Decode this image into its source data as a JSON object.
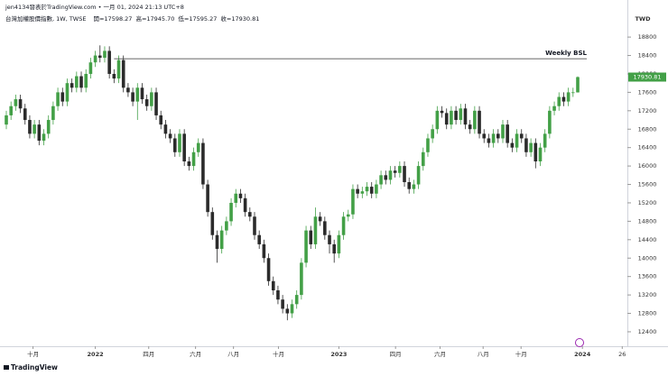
{
  "header": {
    "author_line": "jen4134發表於TradingView.com • 一月 01, 2024 21:13 UTC+8",
    "symbol": "台灣加權股價指數, 1W, TWSE",
    "ohlc": [
      {
        "label": "開=",
        "value": "17598.27"
      },
      {
        "label": "高=",
        "value": "17945.70"
      },
      {
        "label": "低=",
        "value": "17595.27"
      },
      {
        "label": "收=",
        "value": "17930.81"
      }
    ]
  },
  "footer": {
    "brand": "TradingView"
  },
  "chart_data": {
    "type": "candlestick",
    "currency": "TWD",
    "up_color": "#43a047",
    "down_color": "#2b2b2b",
    "ylim": [
      12086,
      19605
    ],
    "yticks": [
      12400,
      12800,
      13200,
      13600,
      14000,
      14400,
      14800,
      15200,
      15600,
      16000,
      16400,
      16800,
      17200,
      17600,
      18000,
      18400,
      18800
    ],
    "xlim": [
      -1.35,
      132.6
    ],
    "xticks": [
      {
        "value": 5.7,
        "label": "十月"
      },
      {
        "value": 19,
        "label": "2022"
      },
      {
        "value": 30.4,
        "label": "四月"
      },
      {
        "value": 40.4,
        "label": "六月"
      },
      {
        "value": 48.5,
        "label": "八月"
      },
      {
        "value": 58.1,
        "label": "十月"
      },
      {
        "value": 71,
        "label": "2023"
      },
      {
        "value": 83.1,
        "label": "四月"
      },
      {
        "value": 92.6,
        "label": "六月"
      },
      {
        "value": 101.8,
        "label": "八月"
      },
      {
        "value": 109.9,
        "label": "十月"
      },
      {
        "value": 123,
        "label": "2024"
      },
      {
        "value": 131.5,
        "label": "26"
      }
    ],
    "annotations": [
      {
        "text": "Weekly BSL",
        "value": 18330,
        "from": 23
      }
    ],
    "open": [
      16900,
      17100,
      17300,
      17450,
      17250,
      17000,
      16700,
      16900,
      16550,
      16700,
      17000,
      17300,
      17600,
      17400,
      17800,
      17700,
      17950,
      17700,
      18000,
      18250,
      18400,
      18350,
      18500,
      18000,
      17900,
      18300,
      17700,
      17600,
      17400,
      17700,
      17450,
      17300,
      17600,
      17100,
      16900,
      16700,
      16600,
      16300,
      16700,
      16100,
      16000,
      16300,
      16500,
      15600,
      15000,
      14500,
      14200,
      14600,
      14800,
      15200,
      15400,
      15300,
      15000,
      14900,
      14500,
      14300,
      14000,
      13500,
      13300,
      13100,
      12900,
      12800,
      13000,
      13200,
      13900,
      14600,
      14300,
      14900,
      14800,
      14500,
      14300,
      14100,
      14500,
      14900,
      14950,
      15500,
      15400,
      15450,
      15550,
      15400,
      15600,
      15800,
      15700,
      15900,
      15850,
      16000,
      15650,
      15500,
      15600,
      16000,
      16300,
      16600,
      16800,
      17200,
      17150,
      16900,
      17200,
      17000,
      17250,
      16900,
      16800,
      17200,
      16700,
      16600,
      16500,
      16700,
      16600,
      16900,
      16500,
      16400,
      16700,
      16600,
      16300,
      16500,
      16100,
      16400,
      16700,
      17200,
      17300,
      17500,
      17400,
      17600,
      17598.27
    ],
    "high": [
      17200,
      17400,
      17550,
      17550,
      17350,
      17100,
      17000,
      17000,
      16800,
      17100,
      17400,
      17700,
      17700,
      17900,
      17900,
      18050,
      18050,
      18100,
      18350,
      18500,
      18620,
      18600,
      18600,
      18100,
      18400,
      18400,
      17800,
      17700,
      17800,
      17800,
      17550,
      17700,
      17700,
      17200,
      17000,
      16800,
      16700,
      16800,
      16800,
      16200,
      16400,
      16600,
      16600,
      15700,
      15100,
      14600,
      14700,
      14900,
      15300,
      15500,
      15500,
      15400,
      15100,
      15000,
      14600,
      14400,
      14100,
      13600,
      13400,
      13200,
      13000,
      13100,
      13300,
      14000,
      14700,
      14700,
      15100,
      15000,
      14900,
      14600,
      14400,
      14600,
      15000,
      15050,
      15600,
      15600,
      15550,
      15650,
      15650,
      15700,
      15900,
      15900,
      16000,
      16000,
      16100,
      16100,
      15750,
      15700,
      16100,
      16400,
      16700,
      16900,
      17300,
      17300,
      17250,
      17300,
      17300,
      17350,
      17350,
      17000,
      17300,
      17300,
      16800,
      16700,
      16800,
      16800,
      17000,
      17000,
      16600,
      16800,
      16800,
      16700,
      16600,
      16600,
      16500,
      16800,
      17300,
      17400,
      17600,
      17600,
      17700,
      17700,
      17945.7
    ],
    "low": [
      16800,
      17000,
      17200,
      17150,
      16900,
      16600,
      16600,
      16450,
      16450,
      16600,
      16900,
      17200,
      17300,
      17300,
      17600,
      17600,
      17600,
      17600,
      17900,
      18150,
      18250,
      18250,
      17900,
      17800,
      17800,
      17600,
      17500,
      17300,
      17000,
      17350,
      17200,
      17200,
      17000,
      16800,
      16600,
      16500,
      16200,
      16200,
      16000,
      15900,
      15900,
      16200,
      15500,
      14900,
      14400,
      13900,
      14100,
      14500,
      14700,
      15100,
      15200,
      14900,
      14800,
      14400,
      14200,
      13900,
      13400,
      13200,
      13000,
      12800,
      12650,
      12700,
      12900,
      13100,
      13800,
      14200,
      14200,
      14700,
      14400,
      14100,
      13900,
      14000,
      14400,
      14800,
      14850,
      15300,
      15300,
      15350,
      15300,
      15300,
      15500,
      15600,
      15600,
      15750,
      15750,
      15550,
      15400,
      15400,
      15500,
      15900,
      16200,
      16500,
      16700,
      17050,
      16800,
      16800,
      16900,
      16900,
      16800,
      16700,
      16700,
      16600,
      16500,
      16400,
      16400,
      16500,
      16500,
      16400,
      16300,
      16300,
      16500,
      16200,
      16200,
      15950,
      16000,
      16300,
      16600,
      17100,
      17200,
      17300,
      17300,
      17500,
      17595.27
    ],
    "close": [
      17100,
      17300,
      17450,
      17250,
      17000,
      16700,
      16900,
      16550,
      16700,
      17000,
      17300,
      17600,
      17400,
      17800,
      17700,
      17950,
      17700,
      18000,
      18250,
      18400,
      18350,
      18500,
      18000,
      17900,
      18300,
      17700,
      17600,
      17400,
      17700,
      17450,
      17300,
      17600,
      17100,
      16900,
      16700,
      16600,
      16300,
      16700,
      16100,
      16000,
      16300,
      16500,
      15600,
      15000,
      14500,
      14200,
      14600,
      14800,
      15200,
      15400,
      15300,
      15000,
      14900,
      14500,
      14300,
      14000,
      13500,
      13300,
      13100,
      12900,
      12800,
      13000,
      13200,
      13900,
      14600,
      14300,
      14900,
      14800,
      14500,
      14300,
      14100,
      14500,
      14900,
      14950,
      15500,
      15400,
      15450,
      15550,
      15400,
      15600,
      15800,
      15700,
      15900,
      15850,
      16000,
      15650,
      15500,
      15600,
      16000,
      16300,
      16600,
      16800,
      17200,
      17150,
      16900,
      17200,
      17000,
      17250,
      16900,
      16800,
      17200,
      16700,
      16600,
      16500,
      16700,
      16600,
      16900,
      16500,
      16400,
      16700,
      16600,
      16300,
      16500,
      16100,
      16400,
      16700,
      17200,
      17300,
      17500,
      17400,
      17600,
      17600,
      17930.81
    ]
  }
}
